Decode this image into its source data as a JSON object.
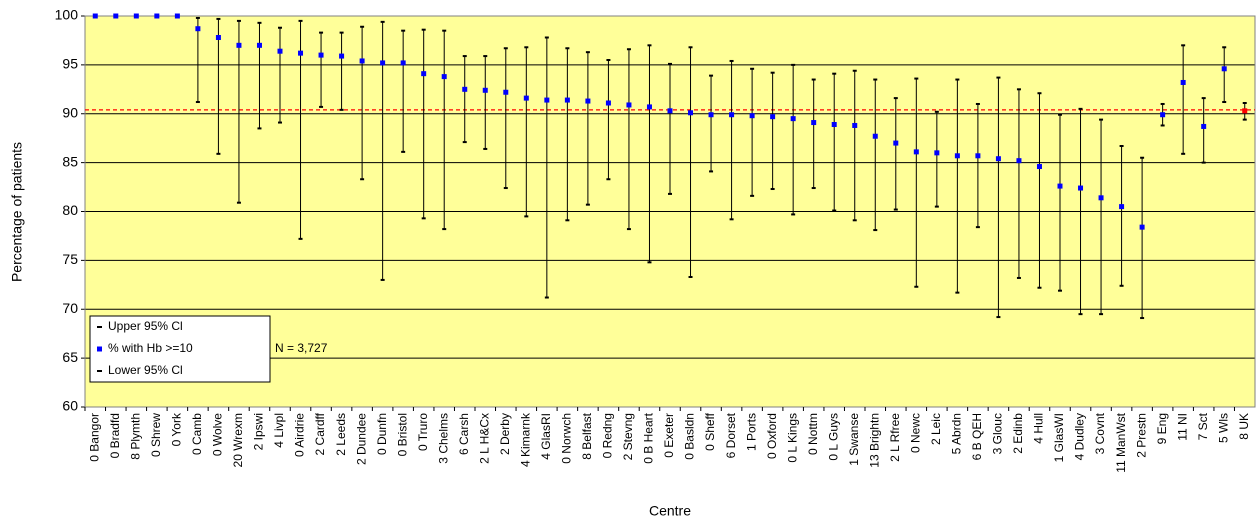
{
  "chart_data": {
    "type": "errorbar",
    "y_label": "Percentage of patients",
    "x_label": "Centre",
    "annotation": "N = 3,727",
    "categories": [
      "0 Bangor",
      "0 Bradfd",
      "8 Plymth",
      "0 Shrew",
      "0 York",
      "0 Camb",
      "0 Wolve",
      "20 Wrexm",
      "2 Ipswi",
      "4 Livpl",
      "0 Airdrie",
      "2 Cardff",
      "2 Leeds",
      "2 Dundee",
      "0 Dunfn",
      "0 Bristol",
      "0 Truro",
      "3 Chelms",
      "6 Carsh",
      "2 L H&Cx",
      "2 Derby",
      "4 Kimarnk",
      "4 GlasRI",
      "0 Norwch",
      "8 Belfast",
      "0 Redng",
      "2 Stevng",
      "0 B Heart",
      "0 Exeter",
      "0 Basldn",
      "0 Sheff",
      "6 Dorset",
      "1 Ports",
      "0 Oxford",
      "0 L Kings",
      "0 Nottm",
      "0 L Guys",
      "1 Swanse",
      "13 Brightn",
      "2 L Rfree",
      "0 Newc",
      "2 Leic",
      "5 Abrdn",
      "6 B QEH",
      "3 Glouc",
      "2 Edinb",
      "4 Hull",
      "1 GlasWI",
      "4 Dudley",
      "3 Covnt",
      "11 ManWst",
      "2 Prestn",
      "9 Eng",
      "11 NI",
      "7 Sct",
      "5 Wls",
      "8 UK"
    ],
    "series": [
      {
        "name": "Upper 95% Cl",
        "color": "#000000",
        "values": [
          100,
          100,
          100,
          100,
          100,
          99.8,
          99.7,
          99.5,
          99.3,
          98.8,
          99.5,
          98.3,
          98.3,
          98.9,
          99.4,
          98.5,
          98.6,
          98.5,
          95.9,
          95.9,
          96.7,
          96.8,
          97.8,
          96.7,
          96.3,
          95.5,
          96.6,
          97.0,
          95.1,
          96.8,
          93.9,
          95.4,
          94.6,
          94.2,
          95.0,
          93.5,
          94.1,
          94.4,
          93.5,
          91.6,
          93.6,
          90.2,
          93.5,
          91.0,
          93.7,
          92.5,
          92.1,
          89.9,
          90.5,
          89.4,
          86.7,
          85.5,
          91.0,
          97.0,
          91.6,
          96.8,
          91.1
        ]
      },
      {
        "name": "% with Hb >=10",
        "color": "#0000ff",
        "values": [
          100,
          100,
          100,
          100,
          100,
          98.7,
          97.8,
          97.0,
          97.0,
          96.4,
          96.2,
          96.0,
          95.9,
          95.4,
          95.2,
          95.2,
          94.1,
          93.8,
          92.5,
          92.4,
          92.2,
          91.6,
          91.4,
          91.4,
          91.3,
          91.1,
          90.9,
          90.7,
          90.3,
          90.1,
          89.9,
          89.9,
          89.8,
          89.7,
          89.5,
          89.1,
          88.9,
          88.8,
          87.7,
          87.0,
          86.1,
          86.0,
          85.7,
          85.7,
          85.4,
          85.2,
          84.6,
          82.6,
          82.4,
          81.4,
          80.5,
          78.4,
          89.9,
          93.2,
          88.7,
          94.6,
          90.3
        ]
      },
      {
        "name": "Lower 95% Cl",
        "color": "#000000",
        "values": [
          100,
          100,
          100,
          100,
          100,
          91.2,
          85.9,
          80.9,
          88.5,
          89.1,
          77.2,
          90.7,
          90.4,
          83.3,
          73.0,
          86.1,
          79.3,
          78.2,
          87.1,
          86.4,
          82.4,
          79.5,
          71.2,
          79.1,
          80.7,
          83.3,
          78.2,
          74.8,
          81.8,
          73.3,
          84.1,
          79.2,
          81.6,
          82.3,
          79.7,
          82.4,
          80.1,
          79.1,
          78.1,
          80.2,
          72.3,
          80.5,
          71.7,
          78.4,
          69.2,
          73.2,
          72.2,
          71.9,
          69.5,
          69.5,
          72.4,
          69.1,
          88.8,
          85.9,
          85.0,
          91.2,
          89.4
        ]
      }
    ],
    "highlight_index": 56,
    "highlight_color": "#ff0000",
    "reference_line": {
      "value": 90.4,
      "color": "#ff0000"
    },
    "ylim": [
      60,
      100
    ],
    "yticks": [
      60,
      65,
      70,
      75,
      80,
      85,
      90,
      95,
      100
    ],
    "grid": true,
    "background": "#ffff99"
  }
}
